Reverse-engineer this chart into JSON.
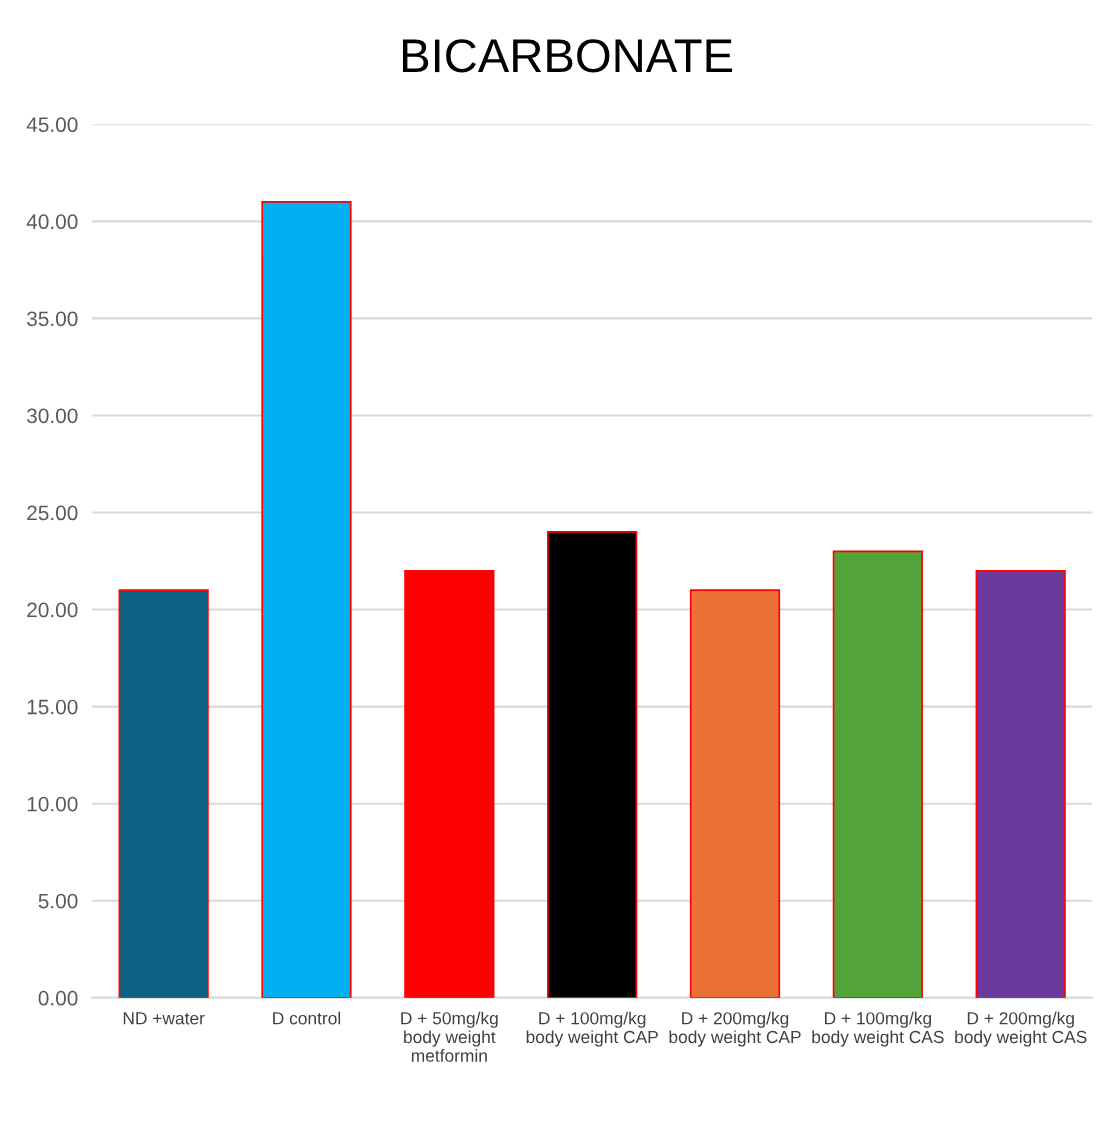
{
  "chart_data": {
    "type": "bar",
    "title": "BICARBONATE",
    "categories": [
      "ND +water",
      "D control",
      "D + 50mg/kg\nbody weight\nmetformin",
      "D + 100mg/kg\nbody weight CAP",
      "D + 200mg/kg\nbody weight CAP",
      "D + 100mg/kg\nbody weight CAS",
      "D + 200mg/kg\nbody weight CAS"
    ],
    "values": [
      21,
      41,
      22,
      24,
      21,
      23,
      22
    ],
    "colors": [
      "#0e6083",
      "#00b0f0",
      "#ff0000",
      "#000000",
      "#ec7136",
      "#52a33a",
      "#6b3a9c"
    ],
    "ylim": [
      0,
      45
    ],
    "yticks": [
      {
        "value": 0,
        "label": "0.00"
      },
      {
        "value": 5,
        "label": "5.00"
      },
      {
        "value": 10,
        "label": "10.00"
      },
      {
        "value": 15,
        "label": "15.00"
      },
      {
        "value": 20,
        "label": "20.00"
      },
      {
        "value": 25,
        "label": "25.00"
      },
      {
        "value": 30,
        "label": "30.00"
      },
      {
        "value": 35,
        "label": "35.00"
      },
      {
        "value": 40,
        "label": "40.00"
      },
      {
        "value": 45,
        "label": "45.00"
      }
    ],
    "grid": "y",
    "legend": false
  }
}
